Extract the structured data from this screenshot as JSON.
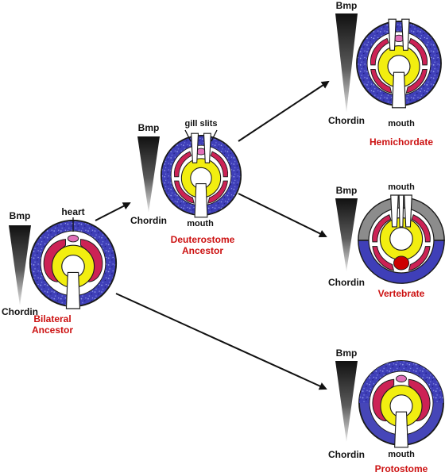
{
  "labels": {
    "bmp": "Bmp",
    "chordin": "Chordin",
    "heart": "heart",
    "gill_slits": "gill slits",
    "mouth": "mouth"
  },
  "organisms": {
    "bilateral": {
      "line1": "Bilateral",
      "line2": "Ancestor"
    },
    "deuterostome": {
      "line1": "Deuterostome",
      "line2": "Ancestor"
    },
    "hemichordate": {
      "line1": "Hemichordate"
    },
    "vertebrate": {
      "line1": "Vertebrate"
    },
    "protostome": {
      "line1": "Protostome"
    }
  },
  "colors": {
    "name_red": "#cc1111",
    "epidermis_blue": "#3f3fb8",
    "neural_grey": "#8c8c8c",
    "crimson": "#cc2255",
    "pink": "#e070b8",
    "yellow": "#f2ee10",
    "heart_red": "#cc0000"
  }
}
